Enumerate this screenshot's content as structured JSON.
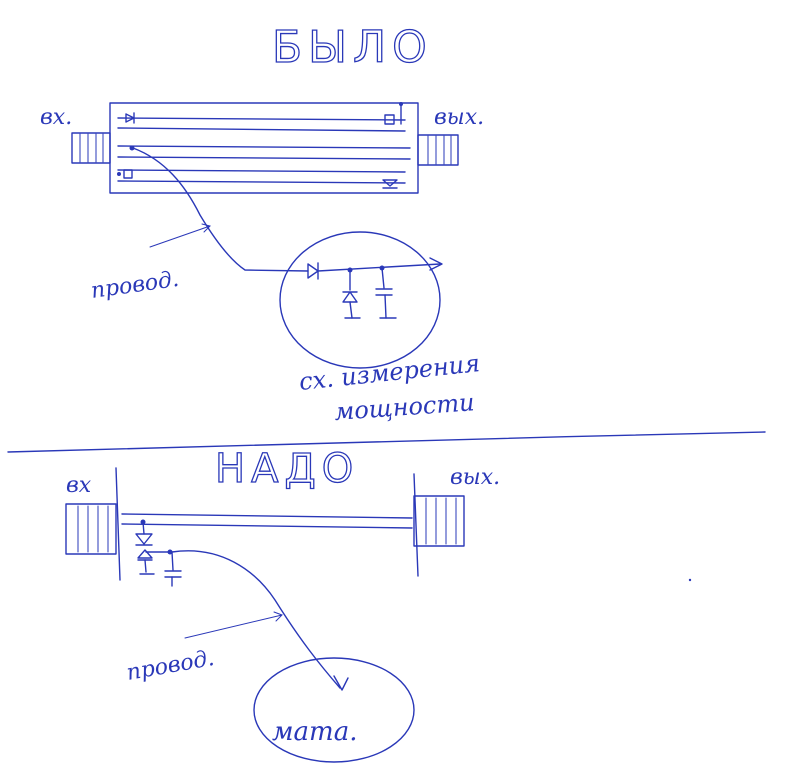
{
  "before": {
    "title": "БЫЛО",
    "input_label": "вх.",
    "output_label": "вых.",
    "wire_label": "провод.",
    "circuit_caption_line1": "сх. измерения",
    "circuit_caption_line2": "мощности"
  },
  "after": {
    "title": "НАДО",
    "input_label": "вх",
    "output_label": "вых.",
    "wire_label": "провод.",
    "target_label": "мата."
  },
  "ink_color": "#2a38b8"
}
